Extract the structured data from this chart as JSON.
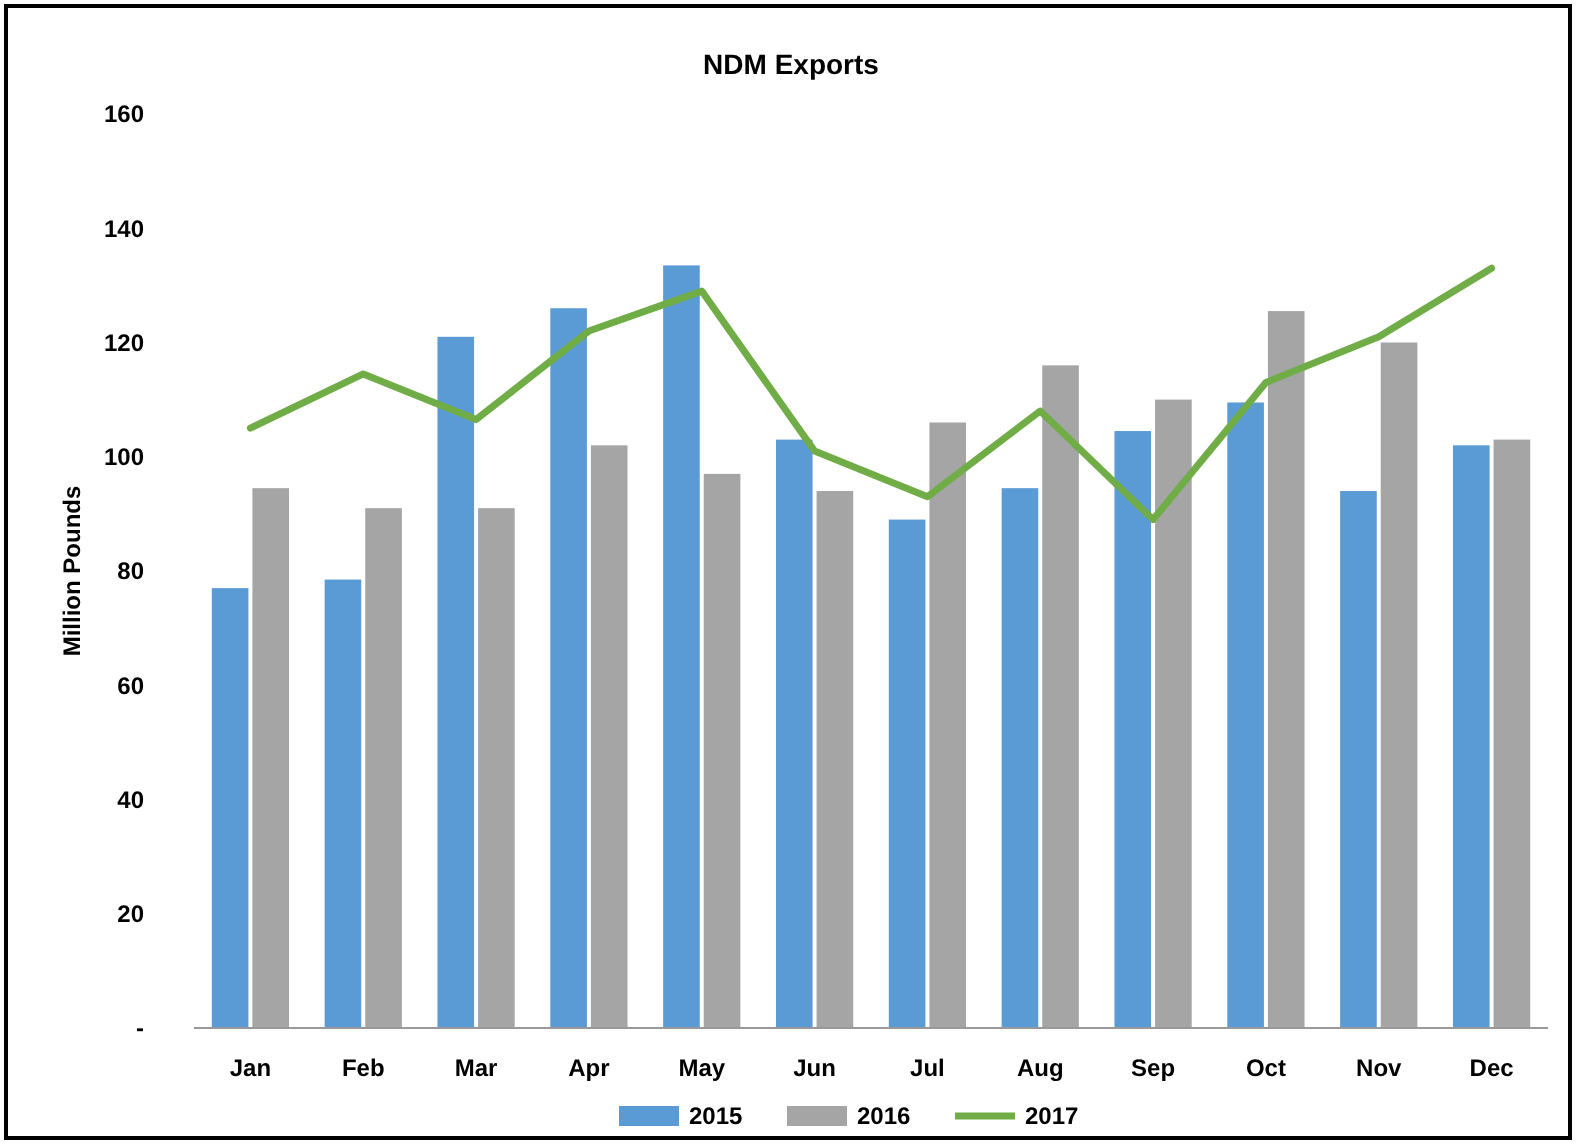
{
  "chart_data": {
    "type": "bar",
    "title": "NDM Exports",
    "ylabel": "Million Pounds",
    "categories": [
      "Jan",
      "Feb",
      "Mar",
      "Apr",
      "May",
      "Jun",
      "Jul",
      "Aug",
      "Sep",
      "Oct",
      "Nov",
      "Dec"
    ],
    "series": [
      {
        "name": "2015",
        "color": "#5b9bd5",
        "values": [
          77,
          78.5,
          121,
          126,
          133.5,
          103,
          89,
          94.5,
          104.5,
          109.5,
          94,
          102
        ]
      },
      {
        "name": "2016",
        "color": "#a5a5a5",
        "values": [
          94.5,
          91,
          91,
          102,
          97,
          94,
          106,
          116,
          110,
          125.5,
          120,
          103
        ]
      },
      {
        "name": "2017",
        "color": "#70ad47",
        "type": "line",
        "values": [
          105,
          114.5,
          106.5,
          122,
          129,
          101,
          93,
          108,
          89,
          113,
          121,
          133
        ]
      }
    ],
    "ylim": [
      0,
      160
    ],
    "yticks": [
      {
        "value": 0,
        "label": "-"
      },
      20,
      40,
      60,
      80,
      100,
      120,
      140,
      160
    ],
    "grid": false,
    "legend": "bottom",
    "marker": "none"
  }
}
